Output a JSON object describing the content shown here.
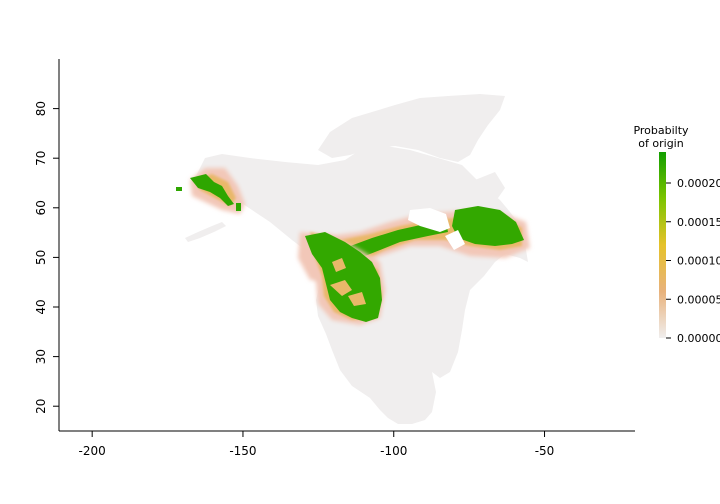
{
  "map": {
    "x_ticks": [
      {
        "value": -200,
        "label": "-200"
      },
      {
        "value": -150,
        "label": "-150"
      },
      {
        "value": -100,
        "label": "-100"
      },
      {
        "value": -50,
        "label": "-50"
      }
    ],
    "y_ticks": [
      {
        "value": 20,
        "label": "20"
      },
      {
        "value": 30,
        "label": "30"
      },
      {
        "value": 40,
        "label": "40"
      },
      {
        "value": 50,
        "label": "50"
      },
      {
        "value": 60,
        "label": "60"
      },
      {
        "value": 70,
        "label": "70"
      },
      {
        "value": 80,
        "label": "80"
      }
    ],
    "x_range": [
      -211,
      -20
    ],
    "y_range": [
      15,
      90
    ],
    "colors": {
      "land_background": "#f0eeee",
      "low": "#f2c7b8",
      "mid": "#e9b86a",
      "high": "#33a800",
      "peak": "#17a000"
    }
  },
  "legend": {
    "title_line1": "Probabilty",
    "title_line2": "of origin",
    "labels": [
      "0.00020",
      "0.00015",
      "0.00010",
      "0.00005",
      "0.00000"
    ],
    "label_values": [
      0.0002,
      0.00015,
      0.0001,
      5e-05,
      0.0
    ],
    "max_value": 0.00024,
    "gradient_stops": [
      "#f0eeee",
      "#e8b27c",
      "#e6c22a",
      "#7cc400",
      "#129e00"
    ]
  }
}
